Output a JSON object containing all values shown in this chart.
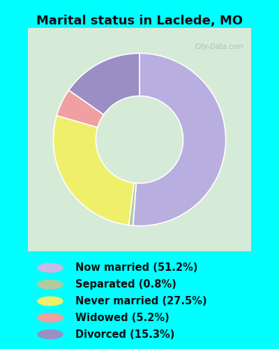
{
  "title": "Marital status in Laclede, MO",
  "title_fontsize": 13,
  "background_color": "#00FFFF",
  "chart_bg_color": "#d6ead8",
  "legend_bg": "#00FFFF",
  "slices": [
    {
      "label": "Now married (51.2%)",
      "value": 51.2,
      "color": "#b8aee0"
    },
    {
      "label": "Separated (0.8%)",
      "value": 0.8,
      "color": "#b5c9a0"
    },
    {
      "label": "Never married (27.5%)",
      "value": 27.5,
      "color": "#efef6a"
    },
    {
      "label": "Widowed (5.2%)",
      "value": 5.2,
      "color": "#f0a0a0"
    },
    {
      "label": "Divorced (15.3%)",
      "value": 15.3,
      "color": "#9b8ec4"
    }
  ],
  "donut_width": 0.42,
  "legend_fontsize": 10.5,
  "legend_dot_colors": [
    "#c9b8e8",
    "#b5c9a0",
    "#efef6a",
    "#f0a0a0",
    "#9b8ec4"
  ],
  "watermark": "City-Data.com"
}
